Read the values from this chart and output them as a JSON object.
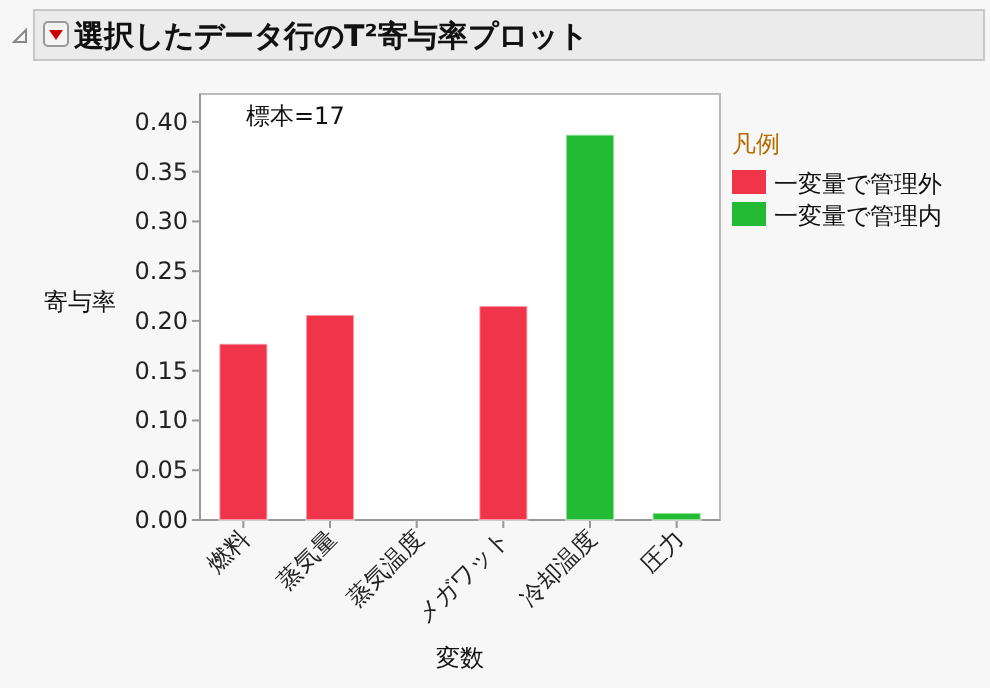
{
  "chart_data": {
    "type": "bar",
    "title": "選択したデータ行のT²寄与率プロット",
    "xlabel": "変数",
    "ylabel": "寄与率",
    "legend_title": "凡例",
    "annotations": [
      "標本=17"
    ],
    "categories": [
      "燃料",
      "蒸気量",
      "蒸気温度",
      "メガワット",
      "冷却温度",
      "圧力"
    ],
    "series": [
      {
        "name": "一変量で管理外",
        "color": "#f0344a",
        "values": [
          0.177,
          0.206,
          null,
          0.215,
          null,
          null
        ]
      },
      {
        "name": "一変量で管理内",
        "color": "#22bb33",
        "values": [
          null,
          null,
          null,
          null,
          0.387,
          0.007
        ]
      }
    ],
    "ylim": [
      0,
      0.428
    ],
    "yticks": [
      {
        "value": 0,
        "label": "0.00"
      },
      {
        "value": 0.05,
        "label": "0.05"
      },
      {
        "value": 0.1,
        "label": "0.10"
      },
      {
        "value": 0.15,
        "label": "0.15"
      },
      {
        "value": 0.2,
        "label": "0.20"
      },
      {
        "value": 0.25,
        "label": "0.25"
      },
      {
        "value": 0.3,
        "label": "0.30"
      },
      {
        "value": 0.35,
        "label": "0.35"
      },
      {
        "value": 0.4,
        "label": "0.40"
      }
    ],
    "legend": "right",
    "grid": false
  }
}
